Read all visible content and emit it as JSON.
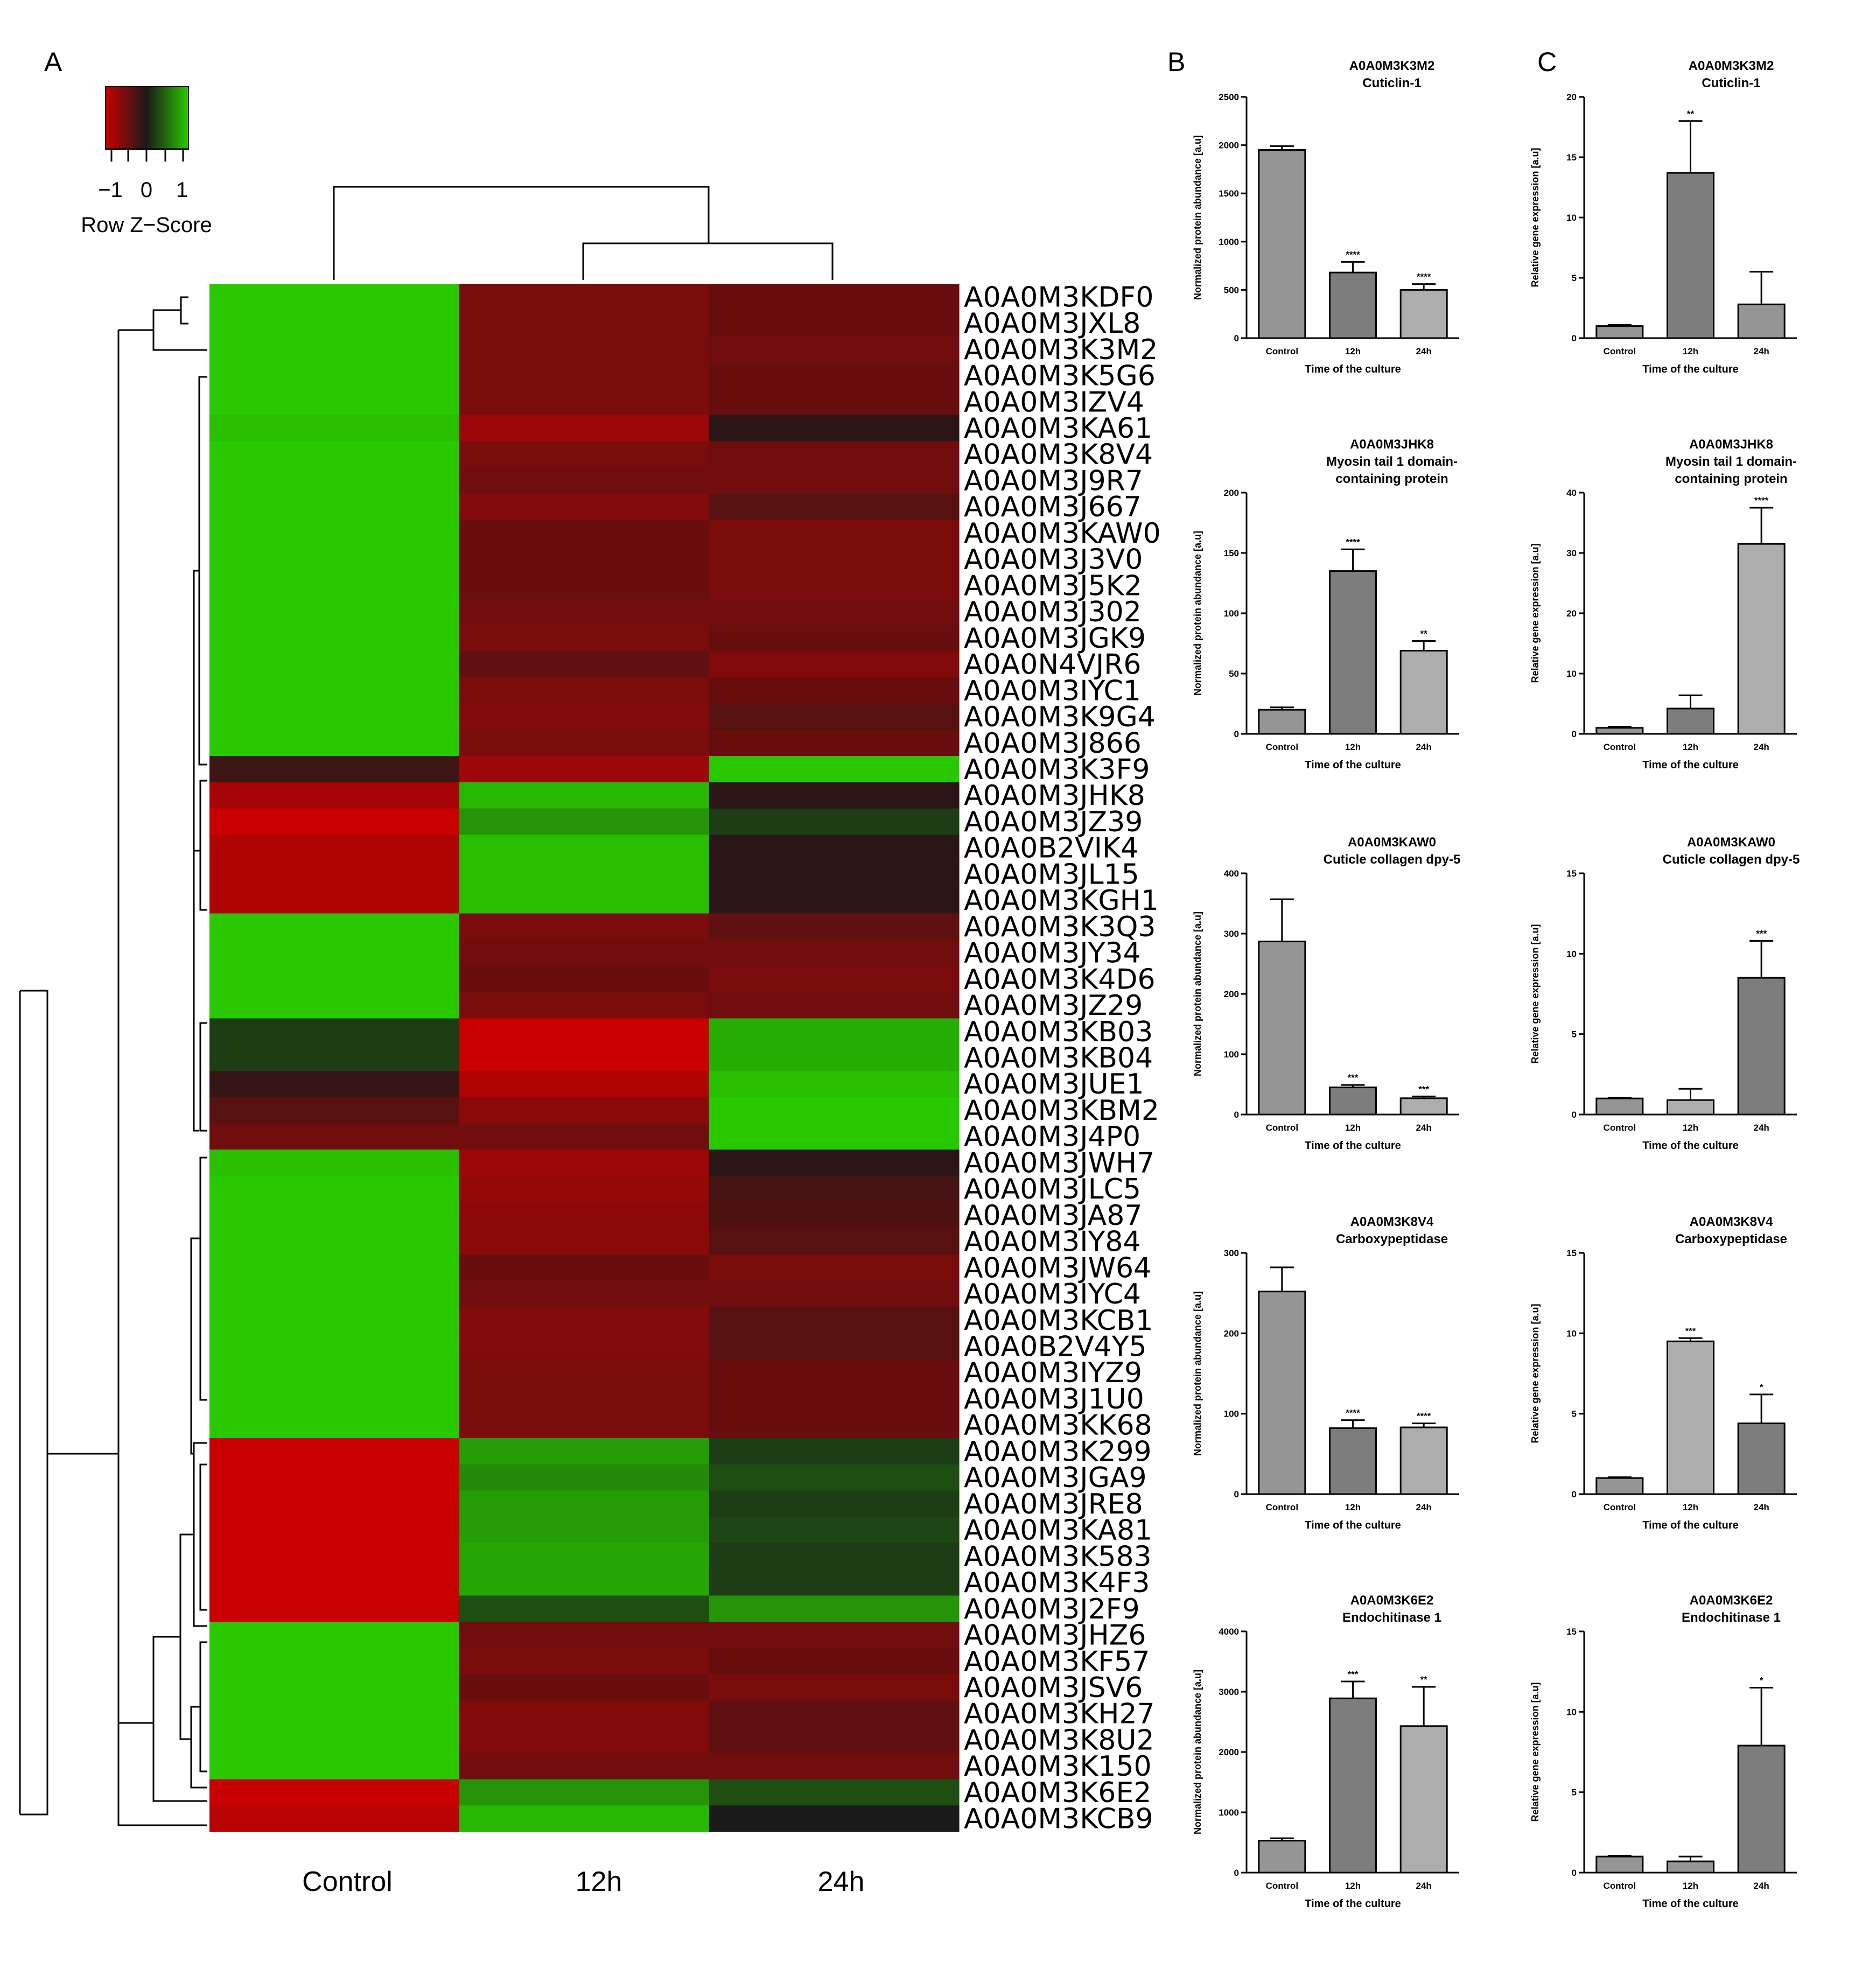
{
  "panels": {
    "a": "A",
    "b": "B",
    "c": "C"
  },
  "heatmap": {
    "legend_title": "Row Z−Score",
    "legend_ticks": [
      "−1",
      "0",
      "1"
    ],
    "columns": [
      "Control",
      "12h",
      "24h"
    ],
    "colors": {
      "low": "#c80000",
      "mid": "#1a1a1a",
      "high": "#29c800"
    }
  },
  "chart_data": [
    {
      "type": "heatmap",
      "columns": [
        "Control",
        "12h",
        "24h"
      ],
      "value_range": [
        -1,
        1
      ],
      "rows": [
        {
          "gene": "A0A0M3KDF0",
          "values": [
            1.0,
            -0.55,
            -0.45
          ]
        },
        {
          "gene": "A0A0M3JXL8",
          "values": [
            1.0,
            -0.55,
            -0.45
          ]
        },
        {
          "gene": "A0A0M3K3M2",
          "values": [
            1.0,
            -0.55,
            -0.5
          ]
        },
        {
          "gene": "A0A0M3K5G6",
          "values": [
            1.0,
            -0.55,
            -0.45
          ]
        },
        {
          "gene": "A0A0M3IZV4",
          "values": [
            1.0,
            -0.55,
            -0.45
          ]
        },
        {
          "gene": "A0A0M3KA61",
          "values": [
            0.95,
            -0.75,
            -0.1
          ]
        },
        {
          "gene": "A0A0M3K8V4",
          "values": [
            1.0,
            -0.55,
            -0.5
          ]
        },
        {
          "gene": "A0A0M3J9R7",
          "values": [
            1.0,
            -0.5,
            -0.5
          ]
        },
        {
          "gene": "A0A0M3J667",
          "values": [
            1.0,
            -0.6,
            -0.35
          ]
        },
        {
          "gene": "A0A0M3KAW0",
          "values": [
            1.0,
            -0.45,
            -0.55
          ]
        },
        {
          "gene": "A0A0M3J3V0",
          "values": [
            1.0,
            -0.45,
            -0.55
          ]
        },
        {
          "gene": "A0A0M3J5K2",
          "values": [
            1.0,
            -0.45,
            -0.55
          ]
        },
        {
          "gene": "A0A0M3J302",
          "values": [
            1.0,
            -0.5,
            -0.5
          ]
        },
        {
          "gene": "A0A0M3JGK9",
          "values": [
            1.0,
            -0.55,
            -0.45
          ]
        },
        {
          "gene": "A0A0N4VJR6",
          "values": [
            1.0,
            -0.4,
            -0.6
          ]
        },
        {
          "gene": "A0A0M3IYC1",
          "values": [
            1.0,
            -0.55,
            -0.45
          ]
        },
        {
          "gene": "A0A0M3K9G4",
          "values": [
            1.0,
            -0.6,
            -0.35
          ]
        },
        {
          "gene": "A0A0M3J866",
          "values": [
            1.0,
            -0.55,
            -0.45
          ]
        },
        {
          "gene": "A0A0M3K3F9",
          "values": [
            -0.2,
            -0.75,
            1.0
          ]
        },
        {
          "gene": "A0A0M3JHK8",
          "values": [
            -0.8,
            0.9,
            -0.1
          ]
        },
        {
          "gene": "A0A0M3JZ39",
          "values": [
            -1.0,
            0.7,
            0.2
          ]
        },
        {
          "gene": "A0A0B2VIK4",
          "values": [
            -0.85,
            0.95,
            -0.1
          ]
        },
        {
          "gene": "A0A0M3JL15",
          "values": [
            -0.85,
            0.95,
            -0.1
          ]
        },
        {
          "gene": "A0A0M3KGH1",
          "values": [
            -0.85,
            0.95,
            -0.1
          ]
        },
        {
          "gene": "A0A0M3K3Q3",
          "values": [
            1.0,
            -0.55,
            -0.4
          ]
        },
        {
          "gene": "A0A0M3JY34",
          "values": [
            1.0,
            -0.5,
            -0.5
          ]
        },
        {
          "gene": "A0A0M3K4D6",
          "values": [
            1.0,
            -0.45,
            -0.55
          ]
        },
        {
          "gene": "A0A0M3JZ29",
          "values": [
            1.0,
            -0.55,
            -0.5
          ]
        },
        {
          "gene": "A0A0M3KB03",
          "values": [
            0.2,
            -1.0,
            0.85
          ]
        },
        {
          "gene": "A0A0M3KB04",
          "values": [
            0.2,
            -1.0,
            0.85
          ]
        },
        {
          "gene": "A0A0M3JUE1",
          "values": [
            -0.15,
            -0.85,
            0.95
          ]
        },
        {
          "gene": "A0A0M3KBM2",
          "values": [
            -0.35,
            -0.65,
            1.0
          ]
        },
        {
          "gene": "A0A0M3J4P0",
          "values": [
            -0.5,
            -0.5,
            1.0
          ]
        },
        {
          "gene": "A0A0M3JWH7",
          "values": [
            0.95,
            -0.75,
            -0.1
          ]
        },
        {
          "gene": "A0A0M3JLC5",
          "values": [
            1.0,
            -0.7,
            -0.25
          ]
        },
        {
          "gene": "A0A0M3JA87",
          "values": [
            1.0,
            -0.65,
            -0.3
          ]
        },
        {
          "gene": "A0A0M3IY84",
          "values": [
            1.0,
            -0.65,
            -0.35
          ]
        },
        {
          "gene": "A0A0M3JW64",
          "values": [
            1.0,
            -0.45,
            -0.55
          ]
        },
        {
          "gene": "A0A0M3IYC4",
          "values": [
            1.0,
            -0.5,
            -0.5
          ]
        },
        {
          "gene": "A0A0M3KCB1",
          "values": [
            1.0,
            -0.6,
            -0.35
          ]
        },
        {
          "gene": "A0A0B2V4Y5",
          "values": [
            1.0,
            -0.6,
            -0.35
          ]
        },
        {
          "gene": "A0A0M3IYZ9",
          "values": [
            1.0,
            -0.55,
            -0.45
          ]
        },
        {
          "gene": "A0A0M3J1U0",
          "values": [
            1.0,
            -0.55,
            -0.45
          ]
        },
        {
          "gene": "A0A0M3KK68",
          "values": [
            1.0,
            -0.55,
            -0.45
          ]
        },
        {
          "gene": "A0A0M3K299",
          "values": [
            -1.0,
            0.75,
            0.2
          ]
        },
        {
          "gene": "A0A0M3JGA9",
          "values": [
            -1.0,
            0.65,
            0.3
          ]
        },
        {
          "gene": "A0A0M3JRE8",
          "values": [
            -1.0,
            0.75,
            0.2
          ]
        },
        {
          "gene": "A0A0M3KA81",
          "values": [
            -1.0,
            0.75,
            0.25
          ]
        },
        {
          "gene": "A0A0M3K583",
          "values": [
            -1.0,
            0.8,
            0.2
          ]
        },
        {
          "gene": "A0A0M3K4F3",
          "values": [
            -1.0,
            0.8,
            0.2
          ]
        },
        {
          "gene": "A0A0M3J2F9",
          "values": [
            -1.0,
            0.3,
            0.7
          ]
        },
        {
          "gene": "A0A0M3JHZ6",
          "values": [
            1.0,
            -0.5,
            -0.5
          ]
        },
        {
          "gene": "A0A0M3KF57",
          "values": [
            1.0,
            -0.55,
            -0.45
          ]
        },
        {
          "gene": "A0A0M3JSV6",
          "values": [
            1.0,
            -0.45,
            -0.55
          ]
        },
        {
          "gene": "A0A0M3KH27",
          "values": [
            1.0,
            -0.6,
            -0.4
          ]
        },
        {
          "gene": "A0A0M3K8U2",
          "values": [
            1.0,
            -0.6,
            -0.4
          ]
        },
        {
          "gene": "A0A0M3K150",
          "values": [
            1.0,
            -0.5,
            -0.5
          ]
        },
        {
          "gene": "A0A0M3K6E2",
          "values": [
            -1.0,
            0.7,
            0.3
          ]
        },
        {
          "gene": "A0A0M3KCB9",
          "values": [
            -0.9,
            0.9,
            0.0
          ]
        }
      ]
    },
    {
      "type": "bar",
      "panel": "B",
      "title": [
        "A0A0M3K3M2",
        "Cuticlin-1"
      ],
      "ylabel": "Normalized protein abundance [a.u]",
      "xlabel": "Time of the culture",
      "categories": [
        "Control",
        "12h",
        "24h"
      ],
      "values": [
        1950,
        680,
        500
      ],
      "errors": [
        40,
        110,
        60
      ],
      "ylim": [
        0,
        2500
      ],
      "yticks": [
        0,
        500,
        1000,
        1500,
        2000,
        2500
      ],
      "annotations": [
        "",
        "****",
        "****"
      ],
      "bar_colors": [
        "#959595",
        "#7d7d7d",
        "#adadad"
      ]
    },
    {
      "type": "bar",
      "panel": "C",
      "title": [
        "A0A0M3K3M2",
        "Cuticlin-1"
      ],
      "ylabel": "Relative gene expression [a.u]",
      "xlabel": "Time of the culture",
      "categories": [
        "Control",
        "12h",
        "24h"
      ],
      "values": [
        1.0,
        13.7,
        2.8
      ],
      "errors": [
        0.1,
        4.3,
        2.7
      ],
      "ylim": [
        0,
        20
      ],
      "yticks": [
        0,
        5,
        10,
        15,
        20
      ],
      "annotations": [
        "",
        "**",
        ""
      ],
      "bar_colors": [
        "#959595",
        "#7d7d7d",
        "#959595"
      ]
    },
    {
      "type": "bar",
      "panel": "B",
      "title": [
        "A0A0M3JHK8",
        "Myosin tail 1 domain-",
        "containing protein"
      ],
      "ylabel": "Normalized protein abundance [a.u]",
      "xlabel": "Time of the culture",
      "categories": [
        "Control",
        "12h",
        "24h"
      ],
      "values": [
        20,
        135,
        69
      ],
      "errors": [
        2,
        18,
        8
      ],
      "ylim": [
        0,
        200
      ],
      "yticks": [
        0,
        50,
        100,
        150,
        200
      ],
      "annotations": [
        "",
        "****",
        "**"
      ],
      "bar_colors": [
        "#959595",
        "#7d7d7d",
        "#adadad"
      ]
    },
    {
      "type": "bar",
      "panel": "C",
      "title": [
        "A0A0M3JHK8",
        "Myosin tail 1 domain-",
        "containing protein"
      ],
      "ylabel": "Relative gene expression [a.u]",
      "xlabel": "Time of the culture",
      "categories": [
        "Control",
        "12h",
        "24h"
      ],
      "values": [
        1.0,
        4.2,
        31.5
      ],
      "errors": [
        0.2,
        2.2,
        6.0
      ],
      "ylim": [
        0,
        40
      ],
      "yticks": [
        0,
        10,
        20,
        30,
        40
      ],
      "annotations": [
        "",
        "",
        "****"
      ],
      "bar_colors": [
        "#959595",
        "#7d7d7d",
        "#adadad"
      ]
    },
    {
      "type": "bar",
      "panel": "B",
      "title": [
        "A0A0M3KAW0",
        "Cuticle collagen dpy-5"
      ],
      "ylabel": "Normalized protein abundance [a.u]",
      "xlabel": "Time of the culture",
      "categories": [
        "Control",
        "12h",
        "24h"
      ],
      "values": [
        287,
        45,
        27
      ],
      "errors": [
        70,
        4,
        3
      ],
      "ylim": [
        0,
        400
      ],
      "yticks": [
        0,
        100,
        200,
        300,
        400
      ],
      "annotations": [
        "",
        "***",
        "***"
      ],
      "bar_colors": [
        "#959595",
        "#7d7d7d",
        "#adadad"
      ]
    },
    {
      "type": "bar",
      "panel": "C",
      "title": [
        "A0A0M3KAW0",
        "Cuticle collagen dpy-5"
      ],
      "ylabel": "Relative gene expression [a.u]",
      "xlabel": "Time of the culture",
      "categories": [
        "Control",
        "12h",
        "24h"
      ],
      "values": [
        1.0,
        0.9,
        8.5
      ],
      "errors": [
        0.05,
        0.7,
        2.3
      ],
      "ylim": [
        0,
        15
      ],
      "yticks": [
        0,
        5,
        10,
        15
      ],
      "annotations": [
        "",
        "",
        "***"
      ],
      "bar_colors": [
        "#959595",
        "#adadad",
        "#7d7d7d"
      ]
    },
    {
      "type": "bar",
      "panel": "B",
      "title": [
        "A0A0M3K8V4",
        "Carboxypeptidase"
      ],
      "ylabel": "Normalized protein abundance [a.u]",
      "xlabel": "Time of the culture",
      "categories": [
        "Control",
        "12h",
        "24h"
      ],
      "values": [
        252,
        82,
        83
      ],
      "errors": [
        30,
        10,
        5
      ],
      "ylim": [
        0,
        300
      ],
      "yticks": [
        0,
        100,
        200,
        300
      ],
      "annotations": [
        "",
        "****",
        "****"
      ],
      "bar_colors": [
        "#959595",
        "#7d7d7d",
        "#adadad"
      ]
    },
    {
      "type": "bar",
      "panel": "C",
      "title": [
        "A0A0M3K8V4",
        "Carboxypeptidase"
      ],
      "ylabel": "Relative gene expression [a.u]",
      "xlabel": "Time of the culture",
      "categories": [
        "Control",
        "12h",
        "24h"
      ],
      "values": [
        1.0,
        9.5,
        4.4
      ],
      "errors": [
        0.05,
        0.2,
        1.8
      ],
      "ylim": [
        0,
        15
      ],
      "yticks": [
        0,
        5,
        10,
        15
      ],
      "annotations": [
        "",
        "***",
        "*"
      ],
      "bar_colors": [
        "#959595",
        "#adadad",
        "#7d7d7d"
      ]
    },
    {
      "type": "bar",
      "panel": "B",
      "title": [
        "A0A0M3K6E2",
        "Endochitinase 1"
      ],
      "ylabel": "Normalized protein abundance [a.u]",
      "xlabel": "Time of the culture",
      "categories": [
        "Control",
        "12h",
        "24h"
      ],
      "values": [
        530,
        2890,
        2430
      ],
      "errors": [
        40,
        280,
        650
      ],
      "ylim": [
        0,
        4000
      ],
      "yticks": [
        0,
        1000,
        2000,
        3000,
        4000
      ],
      "annotations": [
        "",
        "***",
        "**"
      ],
      "bar_colors": [
        "#959595",
        "#7d7d7d",
        "#adadad"
      ]
    },
    {
      "type": "bar",
      "panel": "C",
      "title": [
        "A0A0M3K6E2",
        "Endochitinase 1"
      ],
      "ylabel": "Relative gene expression [a.u]",
      "xlabel": "Time of the culture",
      "categories": [
        "Control",
        "12h",
        "24h"
      ],
      "values": [
        1.0,
        0.7,
        7.9
      ],
      "errors": [
        0.05,
        0.3,
        3.6
      ],
      "ylim": [
        0,
        15
      ],
      "yticks": [
        0,
        5,
        10,
        15
      ],
      "annotations": [
        "",
        "",
        "*"
      ],
      "bar_colors": [
        "#959595",
        "#959595",
        "#7d7d7d"
      ]
    }
  ]
}
